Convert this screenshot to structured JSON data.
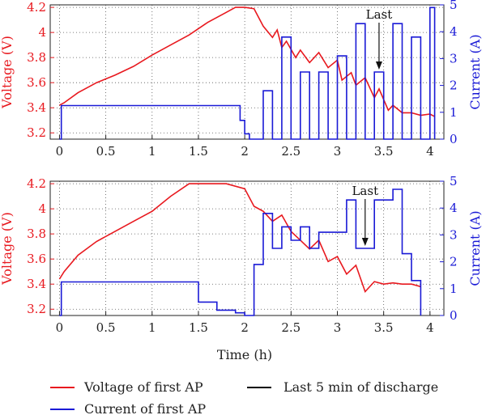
{
  "colors": {
    "voltage": "#e8191f",
    "current": "#1a1ad6",
    "marker": "#000000",
    "grid": "#555555"
  },
  "legend": {
    "voltage_label": "Voltage of first AP",
    "current_label": "Current of first AP",
    "last_label": "Last 5 min of discharge"
  },
  "xlabel": "Time (h)",
  "chart_data": [
    {
      "type": "line",
      "title": "",
      "xlabel": "",
      "ylabel_left": "Voltage (V)",
      "ylabel_right": "Current (A)",
      "xlim": [
        -0.1,
        4.15
      ],
      "ylim_left": [
        3.15,
        4.22
      ],
      "ylim_right": [
        0,
        5
      ],
      "x_ticks": [
        "0",
        "0.5",
        "1",
        "1.5",
        "2",
        "2.5",
        "3",
        "3.5",
        "4"
      ],
      "y_left_ticks": [
        "3.2",
        "3.4",
        "3.6",
        "3.8",
        "4",
        "4.2"
      ],
      "y_right_ticks": [
        "0",
        "1",
        "2",
        "3",
        "4",
        "5"
      ],
      "grid": true,
      "annotation": {
        "text": "Last",
        "x": 3.45
      },
      "series": [
        {
          "name": "Voltage of first AP",
          "x": [
            0,
            0.05,
            0.2,
            0.4,
            0.6,
            0.8,
            1.0,
            1.2,
            1.4,
            1.6,
            1.8,
            1.9,
            2.0,
            2.1,
            2.2,
            2.3,
            2.35,
            2.4,
            2.45,
            2.55,
            2.6,
            2.7,
            2.8,
            2.9,
            3.0,
            3.05,
            3.15,
            3.2,
            3.3,
            3.4,
            3.45,
            3.55,
            3.6,
            3.7,
            3.8,
            3.9,
            4.0,
            4.05
          ],
          "y": [
            3.42,
            3.44,
            3.52,
            3.6,
            3.66,
            3.73,
            3.82,
            3.9,
            3.98,
            4.08,
            4.16,
            4.2,
            4.2,
            4.19,
            4.05,
            3.96,
            4.02,
            3.88,
            3.93,
            3.8,
            3.86,
            3.76,
            3.84,
            3.72,
            3.78,
            3.62,
            3.68,
            3.58,
            3.64,
            3.48,
            3.55,
            3.38,
            3.42,
            3.36,
            3.36,
            3.34,
            3.35,
            3.33
          ]
        },
        {
          "name": "Current of first AP",
          "x": [
            0,
            0.02,
            1.9,
            1.95,
            2.0,
            2.05,
            2.2,
            2.3,
            2.4,
            2.5,
            2.6,
            2.7,
            2.8,
            2.9,
            3.0,
            3.1,
            3.2,
            3.3,
            3.4,
            3.5,
            3.6,
            3.7,
            3.8,
            3.9,
            4.0,
            4.05
          ],
          "y": [
            0,
            1.25,
            1.25,
            0.7,
            0.2,
            0,
            1.8,
            0,
            3.8,
            0,
            2.5,
            0,
            2.5,
            0,
            3.1,
            0,
            4.3,
            0,
            2.5,
            0,
            4.3,
            0,
            3.8,
            0,
            4.9,
            0
          ]
        }
      ]
    },
    {
      "type": "line",
      "title": "",
      "xlabel": "Time (h)",
      "ylabel_left": "Voltage (V)",
      "ylabel_right": "Current (A)",
      "xlim": [
        -0.1,
        4.15
      ],
      "ylim_left": [
        3.15,
        4.22
      ],
      "ylim_right": [
        0,
        5
      ],
      "x_ticks": [
        "0",
        "0.5",
        "1",
        "1.5",
        "2",
        "2.5",
        "3",
        "3.5",
        "4"
      ],
      "y_left_ticks": [
        "3.2",
        "3.4",
        "3.6",
        "3.8",
        "4",
        "4.2"
      ],
      "y_right_ticks": [
        "0",
        "1",
        "2",
        "3",
        "4",
        "5"
      ],
      "grid": true,
      "annotation": {
        "text": "Last",
        "x": 3.3
      },
      "series": [
        {
          "name": "Voltage of first AP",
          "x": [
            0,
            0.05,
            0.2,
            0.4,
            0.6,
            0.8,
            1.0,
            1.2,
            1.4,
            1.6,
            1.8,
            2.0,
            2.1,
            2.2,
            2.3,
            2.4,
            2.5,
            2.6,
            2.7,
            2.8,
            2.9,
            3.0,
            3.1,
            3.2,
            3.3,
            3.4,
            3.5,
            3.6,
            3.7,
            3.8,
            3.9
          ],
          "y": [
            3.44,
            3.5,
            3.63,
            3.74,
            3.82,
            3.9,
            3.98,
            4.1,
            4.2,
            4.2,
            4.2,
            4.16,
            4.02,
            3.98,
            3.9,
            3.95,
            3.82,
            3.75,
            3.68,
            3.75,
            3.58,
            3.62,
            3.48,
            3.55,
            3.34,
            3.42,
            3.4,
            3.41,
            3.4,
            3.4,
            3.38
          ]
        },
        {
          "name": "Current of first AP",
          "x": [
            0,
            0.02,
            1.4,
            1.5,
            1.7,
            1.9,
            2.0,
            2.1,
            2.2,
            2.3,
            2.4,
            2.5,
            2.6,
            2.7,
            2.8,
            2.9,
            3.0,
            3.1,
            3.2,
            3.3,
            3.4,
            3.5,
            3.6,
            3.7,
            3.8,
            3.9
          ],
          "y": [
            0,
            1.25,
            1.25,
            0.5,
            0.2,
            0.1,
            0,
            1.9,
            3.8,
            2.5,
            3.3,
            2.8,
            3.3,
            2.5,
            3.1,
            3.1,
            3.1,
            4.3,
            2.5,
            2.5,
            4.3,
            4.3,
            4.7,
            2.3,
            1.3,
            0
          ]
        }
      ]
    }
  ]
}
